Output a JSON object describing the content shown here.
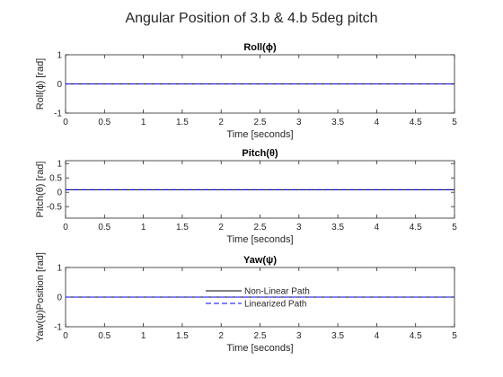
{
  "figure": {
    "title": "Angular Position of 3.b & 4.b 5deg pitch"
  },
  "colors": {
    "nonlinear": "#000000",
    "linearized": "#0000ff",
    "axes": "#262626"
  },
  "legend": {
    "location": "center",
    "entries": [
      {
        "label": "Non-Linear Path",
        "style": "solid"
      },
      {
        "label": "Linearized Path",
        "style": "dashed"
      }
    ]
  },
  "chart_data": [
    {
      "type": "line",
      "title": "Roll(ϕ)",
      "xlabel": "Time [seconds]",
      "ylabel": "Roll(ϕ) [rad]",
      "xlim": [
        0,
        5
      ],
      "ylim": [
        -1,
        1
      ],
      "xticks": [
        "0",
        "0.5",
        "1",
        "1.5",
        "2",
        "2.5",
        "3",
        "3.5",
        "4",
        "4.5",
        "5"
      ],
      "yticks": [
        "-1",
        "0",
        "1"
      ],
      "series": [
        {
          "name": "Non-Linear Path",
          "x": [
            0,
            5
          ],
          "y": [
            0,
            0
          ]
        },
        {
          "name": "Linearized Path",
          "x": [
            0,
            5
          ],
          "y": [
            0,
            0
          ]
        }
      ]
    },
    {
      "type": "line",
      "title": "Pitch(θ)",
      "xlabel": "Time [seconds]",
      "ylabel": "Pitch(θ) [rad]",
      "xlim": [
        0,
        5
      ],
      "ylim": [
        -0.9,
        1.1
      ],
      "xticks": [
        "0",
        "0.5",
        "1",
        "1.5",
        "2",
        "2.5",
        "3",
        "3.5",
        "4",
        "4.5",
        "5"
      ],
      "yticks": [
        "-0.5",
        "0",
        "0.5",
        "1"
      ],
      "series": [
        {
          "name": "Non-Linear Path",
          "x": [
            0,
            5
          ],
          "y": [
            0.0873,
            0.0873
          ]
        },
        {
          "name": "Linearized Path",
          "x": [
            0,
            5
          ],
          "y": [
            0.0873,
            0.0873
          ]
        }
      ]
    },
    {
      "type": "line",
      "title": "Yaw(ψ)",
      "xlabel": "Time [seconds]",
      "ylabel": "Yaw(ψ)Position [rad]",
      "xlim": [
        0,
        5
      ],
      "ylim": [
        -1,
        1
      ],
      "xticks": [
        "0",
        "0.5",
        "1",
        "1.5",
        "2",
        "2.5",
        "3",
        "3.5",
        "4",
        "4.5",
        "5"
      ],
      "yticks": [
        "-1",
        "0",
        "1"
      ],
      "series": [
        {
          "name": "Non-Linear Path",
          "x": [
            0,
            5
          ],
          "y": [
            0,
            0
          ]
        },
        {
          "name": "Linearized Path",
          "x": [
            0,
            5
          ],
          "y": [
            0,
            0
          ]
        }
      ]
    }
  ]
}
